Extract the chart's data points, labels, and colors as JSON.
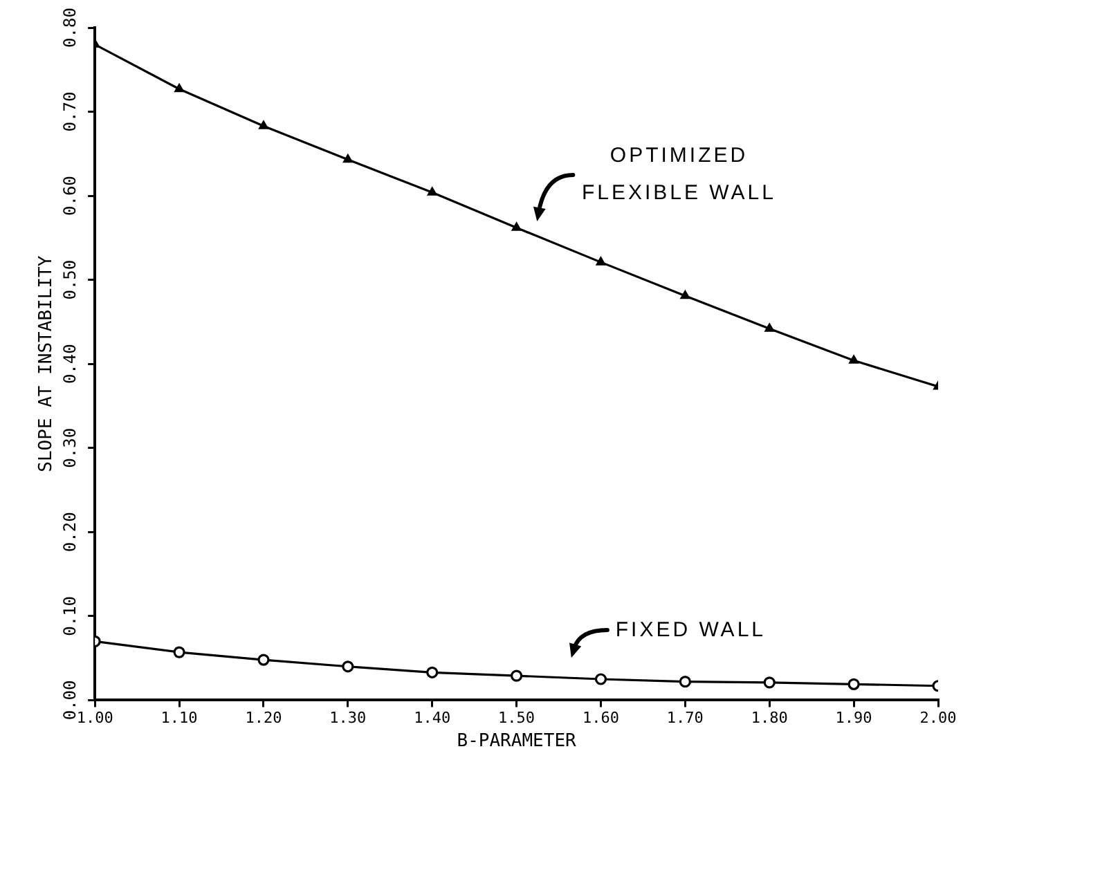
{
  "chart_data": {
    "type": "line",
    "xlabel": "B-PARAMETER",
    "ylabel": "SLOPE AT INSTABILITY",
    "x": [
      1.0,
      1.1,
      1.2,
      1.3,
      1.4,
      1.5,
      1.6,
      1.7,
      1.8,
      1.9,
      2.0
    ],
    "series": [
      {
        "color": "#000000",
        "marker": "triangle",
        "values": [
          0.78,
          0.727,
          0.683,
          0.643,
          0.604,
          0.562,
          0.521,
          0.481,
          0.442,
          0.404,
          0.373
        ]
      },
      {
        "color": "#000000",
        "marker": "circle",
        "values": [
          0.07,
          0.057,
          0.048,
          0.04,
          0.033,
          0.029,
          0.025,
          0.022,
          0.021,
          0.019,
          0.017
        ]
      }
    ],
    "xlim": [
      1.0,
      2.0
    ],
    "xticks": [
      {
        "value": 1.0,
        "label": "1.00"
      },
      {
        "value": 1.1,
        "label": "1.10"
      },
      {
        "value": 1.2,
        "label": "1.20"
      },
      {
        "value": 1.3,
        "label": "1.30"
      },
      {
        "value": 1.4,
        "label": "1.40"
      },
      {
        "value": 1.5,
        "label": "1.50"
      },
      {
        "value": 1.6,
        "label": "1.60"
      },
      {
        "value": 1.7,
        "label": "1.70"
      },
      {
        "value": 1.8,
        "label": "1.80"
      },
      {
        "value": 1.9,
        "label": "1.90"
      },
      {
        "value": 2.0,
        "label": "2.00"
      }
    ],
    "ylim": [
      0,
      0.8
    ],
    "yticks": [
      {
        "value": 0,
        "label": "0.00"
      },
      {
        "value": 0.1,
        "label": "0.10"
      },
      {
        "value": 0.2,
        "label": "0.20"
      },
      {
        "value": 0.3,
        "label": "0.30"
      },
      {
        "value": 0.4,
        "label": "0.40"
      },
      {
        "value": 0.5,
        "label": "0.50"
      },
      {
        "value": 0.6,
        "label": "0.60"
      },
      {
        "value": 0.7,
        "label": "0.70"
      },
      {
        "value": 0.8,
        "label": "0.80"
      }
    ],
    "annotations": [
      {
        "text": "OPTIMIZED FLEXIBLE WALL",
        "x": 1.52,
        "y": 0.55
      },
      {
        "text": "FIXED WALL",
        "x": 1.56,
        "y": 0.03
      }
    ]
  }
}
